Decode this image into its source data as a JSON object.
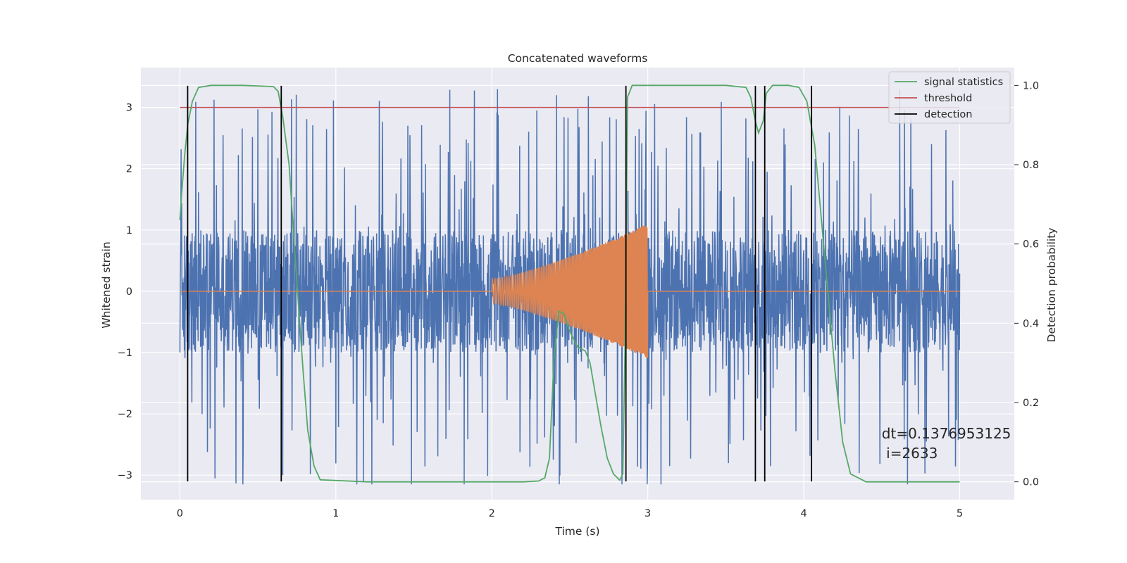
{
  "chart_data": {
    "type": "line",
    "title": "Concatenated waveforms",
    "xlabel": "Time (s)",
    "ylabel_left": "Whitened strain",
    "ylabel_right": "Detection probability",
    "xlim": [
      -0.25,
      5.35
    ],
    "ylim_left": [
      -3.4,
      3.65
    ],
    "ylim_right": [
      -0.045,
      1.045
    ],
    "xticks": [
      0,
      1,
      2,
      3,
      4,
      5
    ],
    "xtick_labels": [
      "0",
      "1",
      "2",
      "3",
      "4",
      "5"
    ],
    "yticks_left": [
      -3,
      -2,
      -1,
      0,
      1,
      2,
      3
    ],
    "ytick_labels_left": [
      "−3",
      "−2",
      "−1",
      "0",
      "1",
      "2",
      "3"
    ],
    "yticks_right": [
      0.0,
      0.2,
      0.4,
      0.6,
      0.8,
      1.0
    ],
    "ytick_labels_right": [
      "0.0",
      "0.2",
      "0.4",
      "0.6",
      "0.8",
      "1.0"
    ],
    "grid": true,
    "legend_position": "top-right",
    "colors": {
      "strain": "#4c72b0",
      "template": "#dd8452",
      "signal_statistics": "#55a868",
      "threshold": "#c44e52",
      "detection": "#000000",
      "axes_bg": "#eaeaf2",
      "grid": "#ffffff"
    },
    "series": [
      {
        "name": "whitened strain",
        "axis": "left",
        "color": "#4c72b0",
        "t_range": [
          0,
          5
        ],
        "envelope": 1.0,
        "max_peak": 3.3
      },
      {
        "name": "injected waveform",
        "axis": "left",
        "color": "#dd8452",
        "t_start": 2.0,
        "t_end": 3.0,
        "amplitude_start": 0.2,
        "amplitude_end": 1.1
      },
      {
        "name": "signal statistics",
        "axis": "right",
        "color": "#55a868",
        "x": [
          0,
          0.01,
          0.03,
          0.05,
          0.08,
          0.12,
          0.2,
          0.4,
          0.6,
          0.63,
          0.66,
          0.7,
          0.73,
          0.76,
          0.79,
          0.82,
          0.86,
          0.9,
          1.2,
          1.6,
          2.0,
          2.2,
          2.3,
          2.34,
          2.37,
          2.4,
          2.43,
          2.46,
          2.5,
          2.55,
          2.6,
          2.63,
          2.66,
          2.7,
          2.74,
          2.78,
          2.82,
          2.84,
          2.855,
          2.87,
          2.9,
          2.95,
          3.2,
          3.5,
          3.63,
          3.66,
          3.69,
          3.71,
          3.74,
          3.76,
          3.8,
          3.9,
          3.97,
          4.02,
          4.07,
          4.1,
          4.15,
          4.2,
          4.25,
          4.3,
          4.4,
          4.6,
          5.0
        ],
        "y": [
          0.66,
          0.72,
          0.82,
          0.9,
          0.96,
          0.995,
          1.0,
          1.0,
          0.997,
          0.985,
          0.92,
          0.8,
          0.62,
          0.45,
          0.28,
          0.13,
          0.04,
          0.005,
          0.0,
          0.0,
          0.0,
          0.0,
          0.002,
          0.01,
          0.06,
          0.32,
          0.43,
          0.425,
          0.38,
          0.34,
          0.33,
          0.3,
          0.23,
          0.14,
          0.06,
          0.02,
          0.004,
          0.02,
          0.35,
          0.97,
          1.0,
          1.0,
          1.0,
          1.0,
          0.995,
          0.97,
          0.91,
          0.88,
          0.91,
          0.98,
          1.0,
          1.0,
          0.995,
          0.96,
          0.85,
          0.72,
          0.5,
          0.28,
          0.1,
          0.02,
          0.0,
          0.0,
          0.0
        ]
      },
      {
        "name": "threshold",
        "axis": "left",
        "color": "#c44e52",
        "x": [
          0,
          5
        ],
        "y": [
          3,
          3
        ]
      }
    ],
    "detections": [
      0.05,
      0.65,
      2.86,
      3.69,
      3.75,
      4.05
    ],
    "detection_ymax": 0.999,
    "detection_ymin": 0.001,
    "legend": [
      "signal statistics",
      "threshold",
      "detection"
    ],
    "annotation": {
      "line1": "dt=0.1376953125",
      "line2": " i=2633",
      "x": 4.5,
      "y": -2.4
    }
  }
}
